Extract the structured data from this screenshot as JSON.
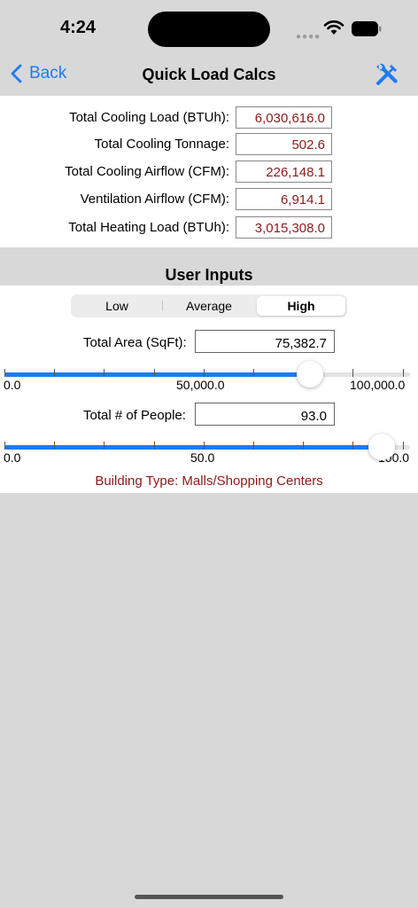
{
  "status": {
    "time": "4:24"
  },
  "nav": {
    "back_label": "Back",
    "title": "Quick Load Calcs"
  },
  "results": [
    {
      "label": "Total Cooling Load (BTUh):",
      "value": "6,030,616.0"
    },
    {
      "label": "Total Cooling Tonnage:",
      "value": "502.6"
    },
    {
      "label": "Total Cooling Airflow (CFM):",
      "value": "226,148.1"
    },
    {
      "label": "Ventilation Airflow (CFM):",
      "value": "6,914.1"
    },
    {
      "label": "Total Heating Load (BTUh):",
      "value": "3,015,308.0"
    }
  ],
  "user_inputs": {
    "title": "User Inputs",
    "segments": [
      "Low",
      "Average",
      "High"
    ],
    "selected_segment": "High",
    "area": {
      "label": "Total Area (SqFt):",
      "value": "75,382.7",
      "slider_min_label": "0.0",
      "slider_mid_label": "50,000.0",
      "slider_max_label": "100,000.0",
      "slider_fraction": 0.754
    },
    "people": {
      "label": "Total # of People:",
      "value": "93.0",
      "slider_min_label": "0.0",
      "slider_mid_label": "50.0",
      "slider_max_label": "100.0",
      "slider_fraction": 0.93
    },
    "building_type": "Building Type: Malls/Shopping Centers"
  },
  "colors": {
    "accent": "#1d7bf5",
    "value_text": "#8b1a1a"
  }
}
